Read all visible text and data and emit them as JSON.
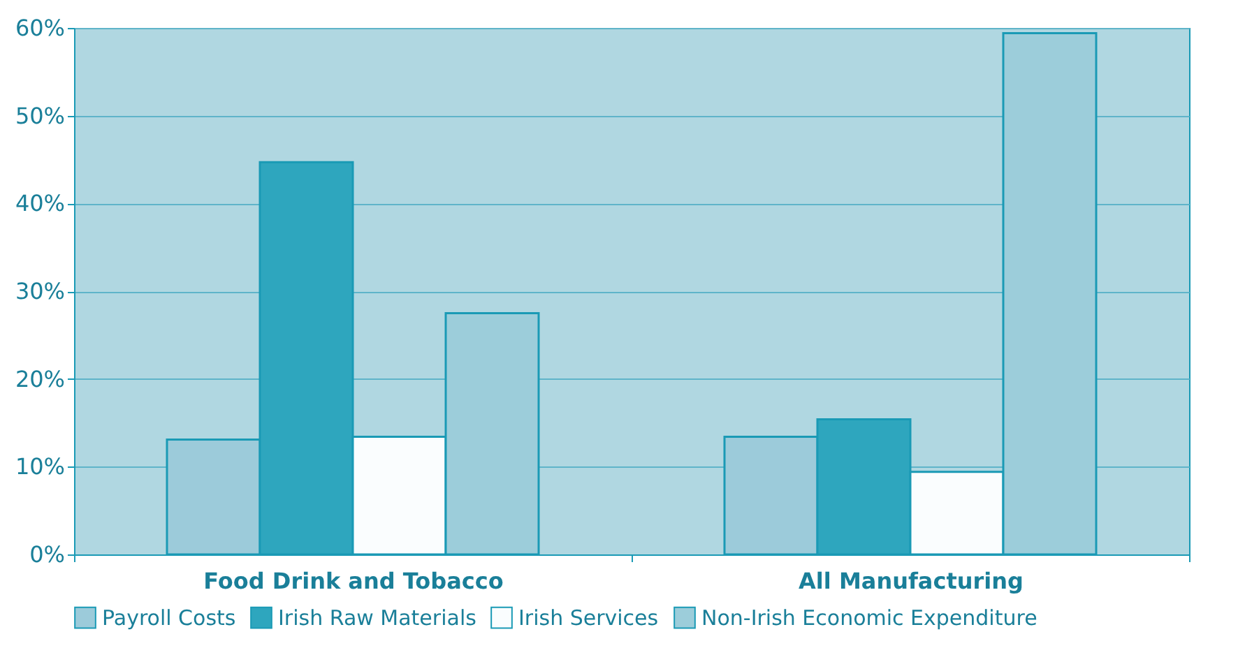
{
  "chart_data": {
    "type": "bar",
    "categories": [
      "Food Drink and Tobacco",
      "All Manufacturing"
    ],
    "series": [
      {
        "name": "Payroll Costs",
        "color": "#9ccbda",
        "values": [
          13.1,
          13.4
        ]
      },
      {
        "name": "Irish Raw Materials",
        "color": "#2ea6be",
        "values": [
          44.7,
          15.4
        ]
      },
      {
        "name": "Irish Services",
        "color": "#fafdfe",
        "values": [
          13.4,
          9.4
        ]
      },
      {
        "name": "Non-Irish Economic Expenditure",
        "color": "#9ccdda",
        "values": [
          27.5,
          59.4
        ]
      }
    ],
    "ylim": [
      0,
      60
    ],
    "yticks": [
      {
        "value": 0,
        "label": "0%"
      },
      {
        "value": 10,
        "label": "10%"
      },
      {
        "value": 20,
        "label": "20%"
      },
      {
        "value": 30,
        "label": "30%"
      },
      {
        "value": 40,
        "label": "40%"
      },
      {
        "value": 50,
        "label": "50%"
      },
      {
        "value": 60,
        "label": "60%"
      }
    ],
    "grid": "y",
    "legend": "bottom"
  }
}
